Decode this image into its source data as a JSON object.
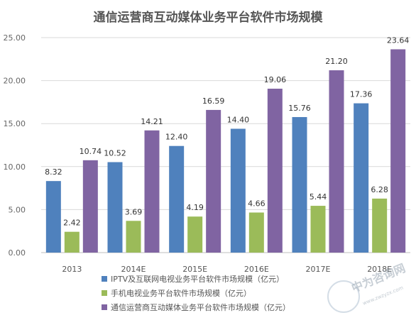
{
  "colors": {
    "series": [
      "#4f81bd",
      "#9bbb59",
      "#8064a2"
    ],
    "grid": "#d9d9d9",
    "axis": "#bfbfbf",
    "watermark_seal": "#b7c7d6"
  },
  "watermark": {
    "main": "中为咨询网",
    "sub": "www.zwzyzx.com"
  },
  "chart_data": {
    "type": "bar",
    "title": "通信运营商互动媒体业务平台软件市场规模",
    "categories": [
      "2013",
      "2014E",
      "2015E",
      "2016E",
      "2017E",
      "2018E"
    ],
    "series": [
      {
        "name": "IPTV及互联网电视业务平台软件市场规模（亿元）",
        "values": [
          8.32,
          10.52,
          12.4,
          14.4,
          15.76,
          17.36
        ],
        "labels": [
          "8.32",
          "10.52",
          "12.40",
          "14.40",
          "15.76",
          "17.36"
        ]
      },
      {
        "name": "手机电视业务平台软件市场规模（亿元）",
        "values": [
          2.42,
          3.69,
          4.19,
          4.66,
          5.44,
          6.28
        ],
        "labels": [
          "2.42",
          "3.69",
          "4.19",
          "4.66",
          "5.44",
          "6.28"
        ]
      },
      {
        "name": "通信运营商互动媒体业务平台软件市场规模（亿元）",
        "values": [
          10.74,
          14.21,
          16.59,
          19.06,
          21.2,
          23.64
        ],
        "labels": [
          "10.74",
          "14.21",
          "16.59",
          "19.06",
          "21.20",
          "23.64"
        ]
      }
    ],
    "ylim": [
      0,
      25
    ],
    "yticks": [
      "0.00",
      "5.00",
      "10.00",
      "15.00",
      "20.00",
      "25.00"
    ],
    "grid": true,
    "legend_position": "bottom-center"
  }
}
